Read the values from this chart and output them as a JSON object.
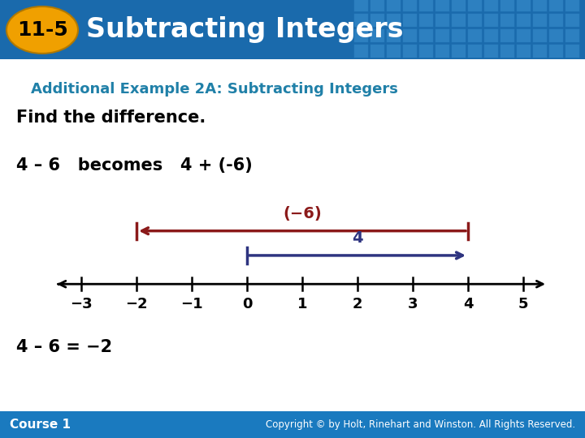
{
  "title_text": "Subtracting Integers",
  "badge_text": "11-5",
  "subtitle": "Additional Example 2A: Subtracting Integers",
  "body_line1": "Find the difference.",
  "body_line2": "4 – 6   becomes   4 + (-6)",
  "answer_line": "4 – 6 = −2",
  "footer_left": "Course 1",
  "footer_right": "Copyright © by Holt, Rinehart and Winston. All Rights Reserved.",
  "header_bg": "#1a6aac",
  "subtitle_color": "#2080a8",
  "body_color": "#000000",
  "badge_bg": "#f0a000",
  "footer_bg": "#1a7abf",
  "number_line_ticks": [
    -3,
    -2,
    -1,
    0,
    1,
    2,
    3,
    4,
    5
  ],
  "arr_neg6_color": "#8b1a1a",
  "arr_pos4_color": "#2e3480"
}
